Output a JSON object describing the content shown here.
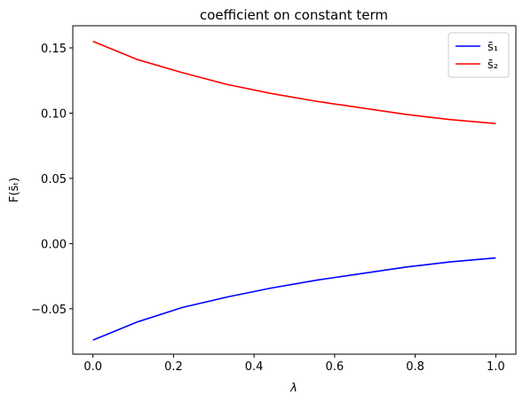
{
  "chart_data": {
    "type": "line",
    "title": "coefficient on constant term",
    "xlabel": "λ",
    "ylabel": "F(s̄ₜ)",
    "x": [
      0,
      0.111,
      0.222,
      0.333,
      0.444,
      0.556,
      0.667,
      0.778,
      0.889,
      1
    ],
    "series": [
      {
        "name": "s̄₁",
        "color": "#0000ff",
        "values": [
          -0.074,
          -0.06,
          -0.049,
          -0.041,
          -0.034,
          -0.028,
          -0.023,
          -0.018,
          -0.014,
          -0.011
        ]
      },
      {
        "name": "s̄₂",
        "color": "#ff0000",
        "values": [
          0.155,
          0.141,
          0.131,
          0.122,
          0.115,
          0.109,
          0.104,
          0.099,
          0.095,
          0.092
        ]
      }
    ],
    "xlim": [
      -0.05,
      1.05
    ],
    "ylim": [
      -0.0848,
      0.167
    ],
    "xticks": [
      {
        "value": 0,
        "label": "0.0"
      },
      0.2,
      0.4,
      0.6,
      0.8,
      {
        "value": 1,
        "label": "1.0"
      }
    ],
    "yticks": [
      {
        "value": -0.05,
        "label": "−0.05"
      },
      {
        "value": 0,
        "label": "0.00"
      },
      0.05,
      {
        "value": 0.1,
        "label": "0.10"
      },
      0.15
    ],
    "grid": false,
    "legend": "upper right"
  }
}
